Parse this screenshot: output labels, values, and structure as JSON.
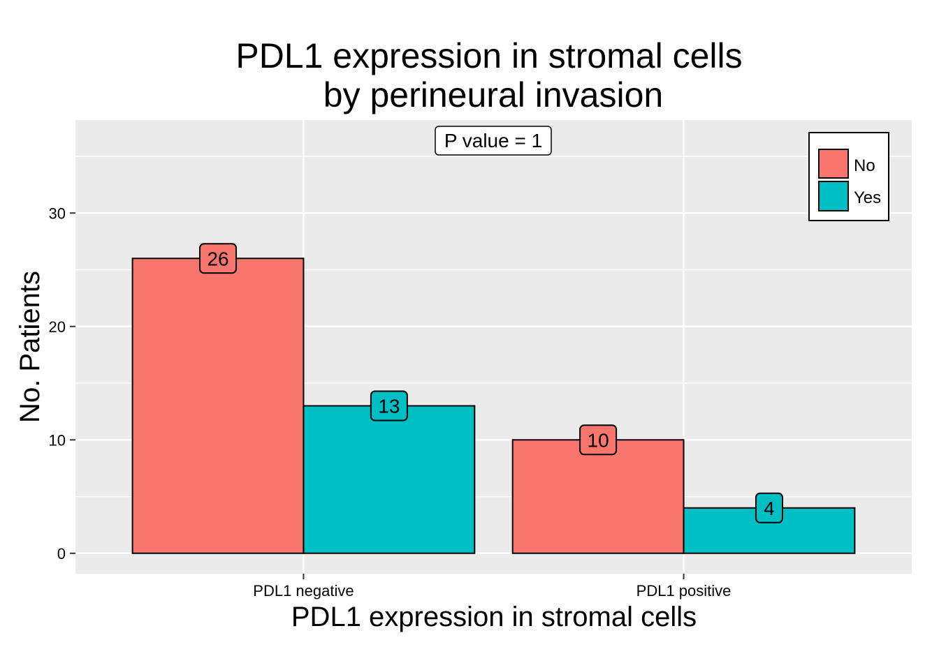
{
  "chart_data": {
    "type": "bar",
    "title_lines": [
      "PDL1 expression in stromal cells",
      "by perineural invasion"
    ],
    "xlabel": "PDL1 expression in stromal cells",
    "ylabel": "No. Patients",
    "categories": [
      "PDL1 negative",
      "PDL1 positive"
    ],
    "series": [
      {
        "name": "No",
        "color": "#F8766D",
        "values": [
          26,
          10
        ]
      },
      {
        "name": "Yes",
        "color": "#00BFC4",
        "values": [
          13,
          4
        ]
      }
    ],
    "ylim": [
      -1.8,
      38.2
    ],
    "yticks": [
      0,
      10,
      20,
      30
    ],
    "annotation": "P value = 1",
    "legend_position": "top-right",
    "grid": true,
    "panel_color": "#EBEBEB"
  }
}
